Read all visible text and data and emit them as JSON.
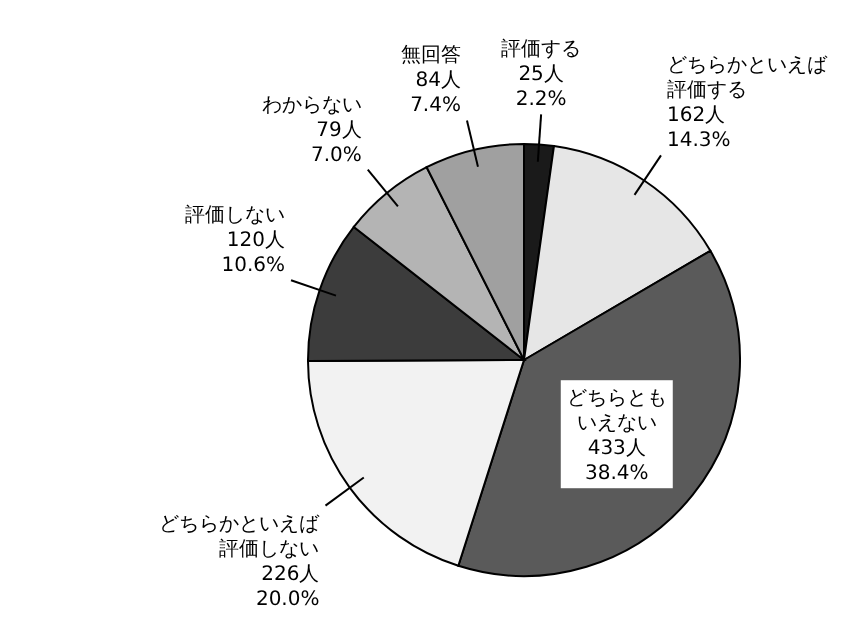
{
  "chart_data": {
    "type": "pie",
    "categories": [
      "評価する",
      "どちらかといえば評価する",
      "どちらともいえない",
      "どちらかといえば評価しない",
      "評価しない",
      "わからない",
      "無回答"
    ],
    "values": [
      25,
      162,
      433,
      226,
      120,
      79,
      84
    ],
    "value_labels": [
      "25人\n2.2%",
      "162人\n14.3%",
      "433人\n38.4%",
      "226人\n20.0%",
      "120人\n10.6%",
      "79人\n7.0%",
      "84人\n7.4%"
    ],
    "colors": [
      "#1a1a1a",
      "#e6e6e6",
      "#5a5a5a",
      "#f2f2f2",
      "#3c3c3c",
      "#b4b4b4",
      "#a0a0a0"
    ]
  }
}
